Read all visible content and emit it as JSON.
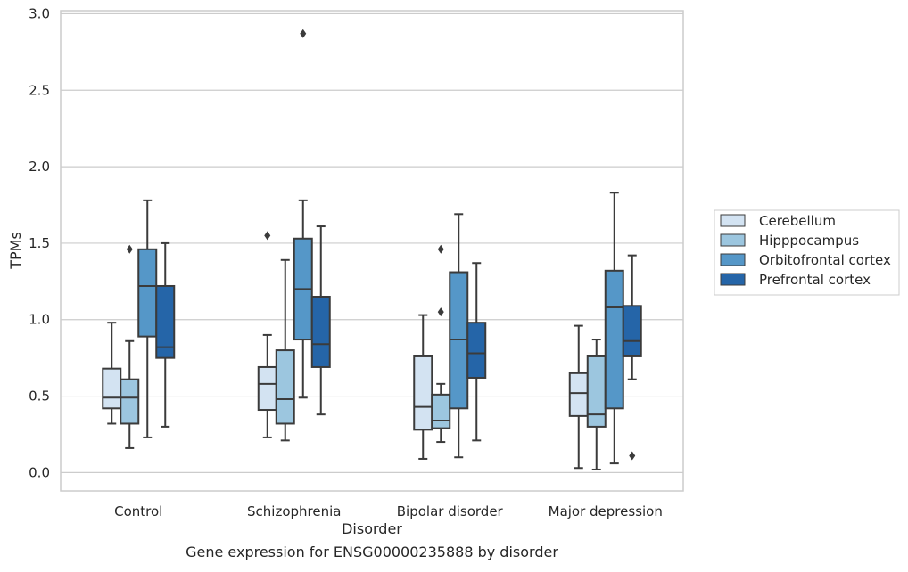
{
  "chart_data": {
    "type": "box",
    "xlabel": "Disorder",
    "ylabel": "TPMs",
    "caption": "Gene expression for ENSG00000235888 by disorder",
    "ylim": [
      -0.12,
      3.02
    ],
    "yticks": [
      "0.0",
      "0.5",
      "1.0",
      "1.5",
      "2.0",
      "2.5",
      "3.0"
    ],
    "grid": "horizontal",
    "legend_position": "right",
    "categories": [
      "Control",
      "Schizophrenia",
      "Bipolar disorder",
      "Major depression"
    ],
    "series": [
      {
        "name": "Cerebellum",
        "color": "#d3e3f2",
        "boxes": [
          {
            "low": 0.32,
            "q1": 0.42,
            "median": 0.49,
            "q3": 0.68,
            "high": 0.98,
            "outliers": []
          },
          {
            "low": 0.23,
            "q1": 0.41,
            "median": 0.58,
            "q3": 0.69,
            "high": 0.9,
            "outliers": [
              1.55
            ]
          },
          {
            "low": 0.09,
            "q1": 0.28,
            "median": 0.43,
            "q3": 0.76,
            "high": 1.03,
            "outliers": []
          },
          {
            "low": 0.03,
            "q1": 0.37,
            "median": 0.52,
            "q3": 0.65,
            "high": 0.96,
            "outliers": []
          }
        ]
      },
      {
        "name": "Hipppocampus",
        "color": "#9cc6df",
        "boxes": [
          {
            "low": 0.16,
            "q1": 0.32,
            "median": 0.49,
            "q3": 0.61,
            "high": 0.86,
            "outliers": [
              1.46
            ]
          },
          {
            "low": 0.21,
            "q1": 0.32,
            "median": 0.48,
            "q3": 0.8,
            "high": 1.39,
            "outliers": []
          },
          {
            "low": 0.2,
            "q1": 0.29,
            "median": 0.34,
            "q3": 0.51,
            "high": 0.58,
            "outliers": [
              1.05,
              1.46
            ]
          },
          {
            "low": 0.02,
            "q1": 0.3,
            "median": 0.38,
            "q3": 0.76,
            "high": 0.87,
            "outliers": []
          }
        ]
      },
      {
        "name": "Orbitofrontal cortex",
        "color": "#5597c8",
        "boxes": [
          {
            "low": 0.23,
            "q1": 0.89,
            "median": 1.22,
            "q3": 1.46,
            "high": 1.78,
            "outliers": []
          },
          {
            "low": 0.49,
            "q1": 0.87,
            "median": 1.2,
            "q3": 1.53,
            "high": 1.78,
            "outliers": [
              2.87
            ]
          },
          {
            "low": 0.1,
            "q1": 0.42,
            "median": 0.87,
            "q3": 1.31,
            "high": 1.69,
            "outliers": []
          },
          {
            "low": 0.06,
            "q1": 0.42,
            "median": 1.08,
            "q3": 1.32,
            "high": 1.83,
            "outliers": []
          }
        ]
      },
      {
        "name": "Prefrontal cortex",
        "color": "#2565a8",
        "boxes": [
          {
            "low": 0.3,
            "q1": 0.75,
            "median": 0.82,
            "q3": 1.22,
            "high": 1.5,
            "outliers": []
          },
          {
            "low": 0.38,
            "q1": 0.69,
            "median": 0.84,
            "q3": 1.15,
            "high": 1.61,
            "outliers": []
          },
          {
            "low": 0.21,
            "q1": 0.62,
            "median": 0.78,
            "q3": 0.98,
            "high": 1.37,
            "outliers": []
          },
          {
            "low": 0.61,
            "q1": 0.76,
            "median": 0.86,
            "q3": 1.09,
            "high": 1.42,
            "outliers": [
              0.11
            ]
          }
        ]
      }
    ]
  }
}
